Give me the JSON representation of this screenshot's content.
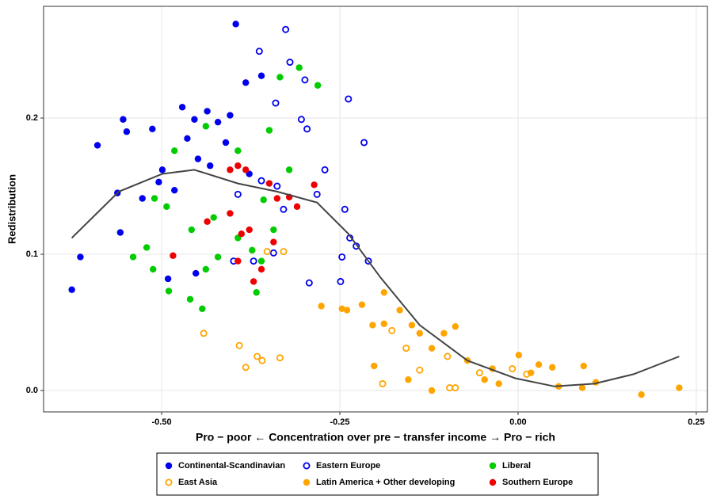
{
  "chart_data": {
    "type": "scatter",
    "xlabel": "Pro − poor ← Concentration over pre − transfer income → Pro − rich",
    "ylabel": "Redistribution",
    "xlim": [
      -0.6656,
      0.2656
    ],
    "ylim": [
      -0.0157,
      0.282
    ],
    "xticks": [
      {
        "value": -0.5,
        "label": "-0.50"
      },
      {
        "value": -0.25,
        "label": "-0.25"
      },
      {
        "value": 0,
        "label": "0.00"
      },
      {
        "value": 0.25,
        "label": "0.25"
      }
    ],
    "yticks": [
      {
        "value": 0,
        "label": "0.0"
      },
      {
        "value": 0.1,
        "label": "0.1"
      },
      {
        "value": 0.2,
        "label": "0.2"
      }
    ],
    "grid": true,
    "legend": "bottom",
    "series": [
      {
        "name": "Continental-Scandinavian",
        "color": "#0000ee",
        "marker": "filled",
        "x": [
          -0.626,
          -0.614,
          -0.59,
          -0.554,
          -0.549,
          -0.562,
          -0.558,
          -0.513,
          -0.499,
          -0.491,
          -0.471,
          -0.454,
          -0.436,
          -0.421,
          -0.404,
          -0.396,
          -0.382,
          -0.377,
          -0.449,
          -0.482,
          -0.452,
          -0.527,
          -0.464,
          -0.41,
          -0.36,
          -0.432,
          -0.504
        ],
        "y": [
          0.074,
          0.098,
          0.18,
          0.199,
          0.19,
          0.145,
          0.116,
          0.192,
          0.162,
          0.082,
          0.208,
          0.199,
          0.205,
          0.197,
          0.202,
          0.269,
          0.226,
          0.159,
          0.17,
          0.147,
          0.086,
          0.141,
          0.185,
          0.182,
          0.231,
          0.165,
          0.153
        ]
      },
      {
        "name": "Eastern Europe",
        "color": "#0000ee",
        "marker": "open",
        "x": [
          -0.326,
          -0.363,
          -0.32,
          -0.238,
          -0.216,
          -0.304,
          -0.296,
          -0.271,
          -0.282,
          -0.243,
          -0.236,
          -0.227,
          -0.21,
          -0.247,
          -0.249,
          -0.293,
          -0.343,
          -0.371,
          -0.338,
          -0.36,
          -0.329,
          -0.299,
          -0.34,
          -0.399,
          -0.393
        ],
        "y": [
          0.265,
          0.249,
          0.241,
          0.214,
          0.182,
          0.199,
          0.192,
          0.162,
          0.144,
          0.133,
          0.112,
          0.106,
          0.095,
          0.098,
          0.08,
          0.079,
          0.101,
          0.095,
          0.15,
          0.154,
          0.133,
          0.228,
          0.211,
          0.095,
          0.144
        ]
      },
      {
        "name": "Liberal",
        "color": "#00cc00",
        "marker": "filled",
        "x": [
          -0.307,
          -0.281,
          -0.334,
          -0.349,
          -0.393,
          -0.438,
          -0.482,
          -0.493,
          -0.51,
          -0.521,
          -0.54,
          -0.512,
          -0.49,
          -0.46,
          -0.443,
          -0.438,
          -0.421,
          -0.458,
          -0.427,
          -0.393,
          -0.373,
          -0.36,
          -0.367,
          -0.343,
          -0.357,
          -0.321
        ],
        "y": [
          0.237,
          0.224,
          0.23,
          0.191,
          0.176,
          0.194,
          0.176,
          0.135,
          0.141,
          0.105,
          0.098,
          0.089,
          0.073,
          0.067,
          0.06,
          0.089,
          0.098,
          0.118,
          0.127,
          0.112,
          0.103,
          0.095,
          0.072,
          0.118,
          0.14,
          0.162
        ]
      },
      {
        "name": "East Asia",
        "color": "#ffa500",
        "marker": "open",
        "x": [
          -0.441,
          -0.391,
          -0.382,
          -0.366,
          -0.359,
          -0.334,
          -0.352,
          -0.329,
          -0.177,
          -0.157,
          -0.19,
          -0.138,
          -0.099,
          -0.096,
          -0.088,
          -0.054,
          -0.008,
          0.012
        ],
        "y": [
          0.042,
          0.033,
          0.017,
          0.025,
          0.022,
          0.024,
          0.102,
          0.102,
          0.044,
          0.031,
          0.005,
          0.015,
          0.025,
          0.002,
          0.002,
          0.013,
          0.016,
          0.012
        ]
      },
      {
        "name": "Latin America + Other developing",
        "color": "#ffa500",
        "marker": "filled",
        "x": [
          -0.276,
          -0.247,
          -0.24,
          -0.219,
          -0.188,
          -0.166,
          -0.204,
          -0.188,
          -0.149,
          -0.138,
          -0.121,
          -0.104,
          -0.088,
          -0.202,
          -0.154,
          -0.121,
          -0.071,
          -0.047,
          -0.027,
          0.001,
          0.029,
          0.048,
          0.057,
          0.09,
          0.092,
          0.109,
          0.173,
          0.226,
          -0.036,
          0.018
        ],
        "y": [
          0.062,
          0.06,
          0.059,
          0.063,
          0.072,
          0.059,
          0.048,
          0.049,
          0.048,
          0.042,
          0.031,
          0.042,
          0.047,
          0.018,
          0.008,
          0,
          0.022,
          0.008,
          0.005,
          0.026,
          0.019,
          0.017,
          0.003,
          0.002,
          0.018,
          0.006,
          -0.003,
          0.002,
          0.016,
          0.013
        ]
      },
      {
        "name": "Southern Europe",
        "color": "#ee0000",
        "marker": "filled",
        "x": [
          -0.484,
          -0.404,
          -0.393,
          -0.436,
          -0.404,
          -0.388,
          -0.377,
          -0.393,
          -0.371,
          -0.36,
          -0.343,
          -0.338,
          -0.321,
          -0.31,
          -0.286,
          -0.349,
          -0.382
        ],
        "y": [
          0.099,
          0.162,
          0.165,
          0.124,
          0.13,
          0.115,
          0.118,
          0.095,
          0.08,
          0.089,
          0.109,
          0.141,
          0.142,
          0.135,
          0.151,
          0.152,
          0.162
        ]
      }
    ],
    "smooth": {
      "color": "#444444",
      "x": [
        -0.626,
        -0.56,
        -0.499,
        -0.454,
        -0.393,
        -0.338,
        -0.282,
        -0.238,
        -0.193,
        -0.138,
        -0.071,
        -0.004,
        0.051,
        0.107,
        0.162,
        0.226
      ],
      "y": [
        0.112,
        0.146,
        0.159,
        0.162,
        0.152,
        0.146,
        0.138,
        0.115,
        0.083,
        0.048,
        0.022,
        0.009,
        0.003,
        0.005,
        0.012,
        0.025
      ]
    }
  }
}
